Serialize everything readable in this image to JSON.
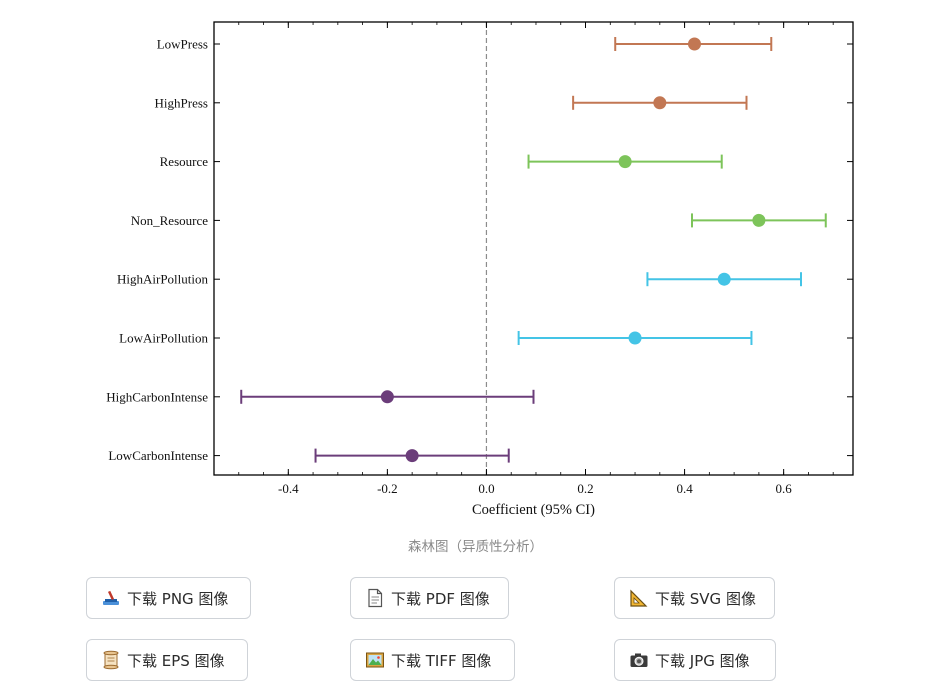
{
  "chart_data": {
    "type": "errorbar",
    "categories": [
      "LowPress",
      "HighPress",
      "Resource",
      "Non_Resource",
      "HighAirPollution",
      "LowAirPollution",
      "HighCarbonIntense",
      "LowCarbonIntense"
    ],
    "estimates": [
      0.42,
      0.35,
      0.28,
      0.55,
      0.48,
      0.3,
      -0.2,
      -0.15
    ],
    "ci_lower": [
      0.26,
      0.175,
      0.085,
      0.415,
      0.325,
      0.065,
      -0.495,
      -0.345
    ],
    "ci_upper": [
      0.575,
      0.525,
      0.475,
      0.685,
      0.635,
      0.535,
      0.095,
      0.045
    ],
    "colors": [
      "#c27753",
      "#c27753",
      "#7dc45a",
      "#7dc45a",
      "#44c4e6",
      "#44c4e6",
      "#6b3d7a",
      "#6b3d7a"
    ],
    "xticks": [
      "-0.4",
      "-0.2",
      "0.0",
      "0.2",
      "0.4",
      "0.6"
    ],
    "xlim": [
      -0.55,
      0.74
    ],
    "xlabel": "Coefficient (95% CI)",
    "reference_line": 0
  },
  "caption": "森林图（异质性分析）",
  "buttons": [
    {
      "label": "下载 PNG 图像",
      "icon": "paint-icon"
    },
    {
      "label": "下载 PDF 图像",
      "icon": "document-icon"
    },
    {
      "label": "下载 SVG 图像",
      "icon": "triangle-ruler-icon"
    },
    {
      "label": "下载 EPS 图像",
      "icon": "scroll-icon"
    },
    {
      "label": "下载 TIFF 图像",
      "icon": "picture-icon"
    },
    {
      "label": "下载 JPG 图像",
      "icon": "camera-icon"
    }
  ]
}
